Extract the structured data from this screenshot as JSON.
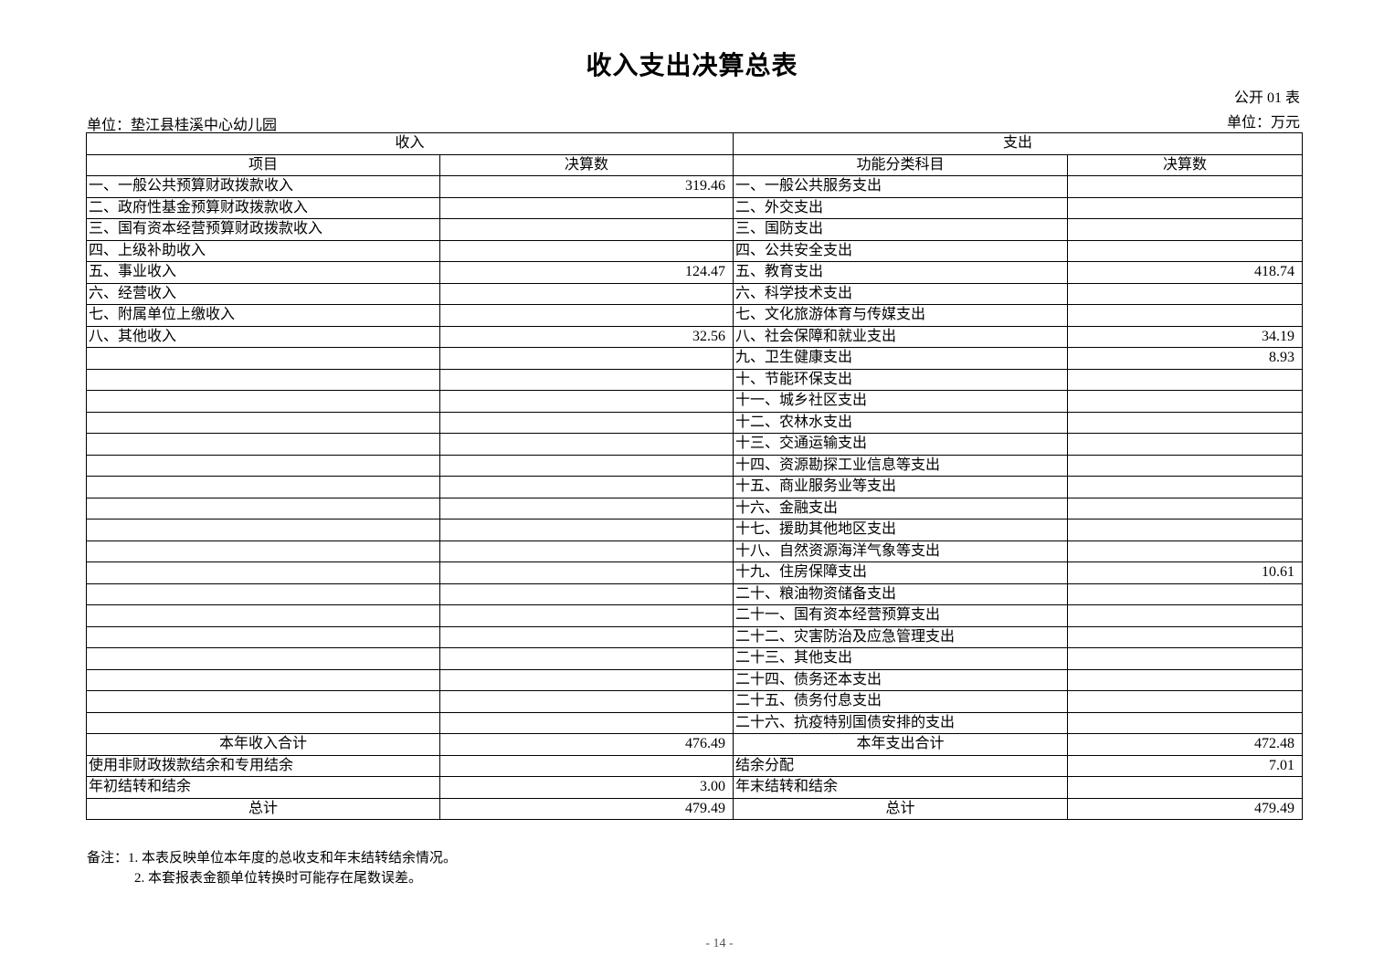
{
  "title": "收入支出决算总表",
  "table_no": "公开 01 表",
  "unit_org": "单位：垫江县桂溪中心幼儿园",
  "unit_currency": "单位：万元",
  "header": {
    "income": "收入",
    "expense": "支出",
    "income_item": "项目",
    "income_amount": "决算数",
    "expense_item": "功能分类科目",
    "expense_amount": "决算数"
  },
  "rows": [
    {
      "income_item": "一、一般公共预算财政拨款收入",
      "income_amount": "319.46",
      "expense_item": "一、一般公共服务支出",
      "expense_amount": ""
    },
    {
      "income_item": "二、政府性基金预算财政拨款收入",
      "income_amount": "",
      "expense_item": "二、外交支出",
      "expense_amount": ""
    },
    {
      "income_item": "三、国有资本经营预算财政拨款收入",
      "income_amount": "",
      "expense_item": "三、国防支出",
      "expense_amount": ""
    },
    {
      "income_item": "四、上级补助收入",
      "income_amount": "",
      "expense_item": "四、公共安全支出",
      "expense_amount": ""
    },
    {
      "income_item": "五、事业收入",
      "income_amount": "124.47",
      "expense_item": "五、教育支出",
      "expense_amount": "418.74"
    },
    {
      "income_item": "六、经营收入",
      "income_amount": "",
      "expense_item": "六、科学技术支出",
      "expense_amount": ""
    },
    {
      "income_item": "七、附属单位上缴收入",
      "income_amount": "",
      "expense_item": "七、文化旅游体育与传媒支出",
      "expense_amount": ""
    },
    {
      "income_item": "八、其他收入",
      "income_amount": "32.56",
      "expense_item": "八、社会保障和就业支出",
      "expense_amount": "34.19"
    },
    {
      "income_item": "",
      "income_amount": "",
      "expense_item": "九、卫生健康支出",
      "expense_amount": "8.93"
    },
    {
      "income_item": "",
      "income_amount": "",
      "expense_item": "十、节能环保支出",
      "expense_amount": ""
    },
    {
      "income_item": "",
      "income_amount": "",
      "expense_item": "十一、城乡社区支出",
      "expense_amount": ""
    },
    {
      "income_item": "",
      "income_amount": "",
      "expense_item": "十二、农林水支出",
      "expense_amount": ""
    },
    {
      "income_item": "",
      "income_amount": "",
      "expense_item": "十三、交通运输支出",
      "expense_amount": ""
    },
    {
      "income_item": "",
      "income_amount": "",
      "expense_item": "十四、资源勘探工业信息等支出",
      "expense_amount": ""
    },
    {
      "income_item": "",
      "income_amount": "",
      "expense_item": "十五、商业服务业等支出",
      "expense_amount": ""
    },
    {
      "income_item": "",
      "income_amount": "",
      "expense_item": "十六、金融支出",
      "expense_amount": ""
    },
    {
      "income_item": "",
      "income_amount": "",
      "expense_item": "十七、援助其他地区支出",
      "expense_amount": ""
    },
    {
      "income_item": "",
      "income_amount": "",
      "expense_item": "十八、自然资源海洋气象等支出",
      "expense_amount": ""
    },
    {
      "income_item": "",
      "income_amount": "",
      "expense_item": "十九、住房保障支出",
      "expense_amount": "10.61"
    },
    {
      "income_item": "",
      "income_amount": "",
      "expense_item": "二十、粮油物资储备支出",
      "expense_amount": ""
    },
    {
      "income_item": "",
      "income_amount": "",
      "expense_item": "二十一、国有资本经营预算支出",
      "expense_amount": ""
    },
    {
      "income_item": "",
      "income_amount": "",
      "expense_item": "二十二、灾害防治及应急管理支出",
      "expense_amount": ""
    },
    {
      "income_item": "",
      "income_amount": "",
      "expense_item": "二十三、其他支出",
      "expense_amount": ""
    },
    {
      "income_item": "",
      "income_amount": "",
      "expense_item": "二十四、债务还本支出",
      "expense_amount": ""
    },
    {
      "income_item": "",
      "income_amount": "",
      "expense_item": "二十五、债务付息支出",
      "expense_amount": ""
    },
    {
      "income_item": "",
      "income_amount": "",
      "expense_item": "二十六、抗疫特别国债安排的支出",
      "expense_amount": ""
    },
    {
      "income_item": "本年收入合计",
      "income_amount": "476.49",
      "expense_item": "本年支出合计",
      "expense_amount": "472.48",
      "centered": true
    },
    {
      "income_item": "使用非财政拨款结余和专用结余",
      "income_amount": "",
      "expense_item": "结余分配",
      "expense_amount": "7.01"
    },
    {
      "income_item": "年初结转和结余",
      "income_amount": "3.00",
      "expense_item": "年末结转和结余",
      "expense_amount": ""
    },
    {
      "income_item": "总计",
      "income_amount": "479.49",
      "expense_item": "总计",
      "expense_amount": "479.49",
      "centered": true
    }
  ],
  "notes": {
    "line1": "备注：1. 本表反映单位本年度的总收支和年末结转结余情况。",
    "line2": "2. 本套报表金额单位转换时可能存在尾数误差。"
  },
  "page_number": "- 14 -"
}
